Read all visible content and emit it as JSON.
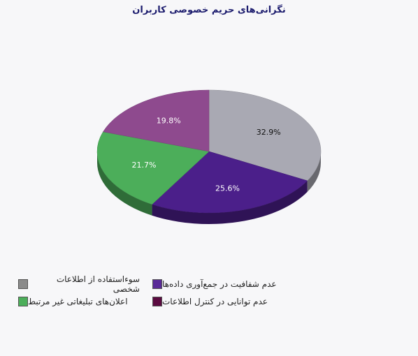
{
  "chart_data": {
    "type": "pie",
    "title": "نگرانی‌های حریم خصوصی کاربران",
    "series": [
      {
        "name": "سوءاستفاده از اطلاعات شخصی",
        "value": 32.9,
        "label": "32.9%",
        "color": "#a9a9b3"
      },
      {
        "name": "عدم شفافیت در جمع‌آوری داده‌ها",
        "value": 25.6,
        "label": "25.6%",
        "color": "#4b1f8a"
      },
      {
        "name": "اعلان‌های تبلیغاتی غیر مرتبط",
        "value": 21.7,
        "label": "21.7%",
        "color": "#4cae5a"
      },
      {
        "name": "عدم توانایی در کنترل اطلاعات",
        "value": 19.8,
        "label": "19.8%",
        "color": "#8e4a8e"
      }
    ],
    "legend_position": "bottom",
    "legend_swatch_colors": [
      "#8a8a8a",
      "#5a2a98",
      "#4cae5a",
      "#5a0a40"
    ]
  }
}
